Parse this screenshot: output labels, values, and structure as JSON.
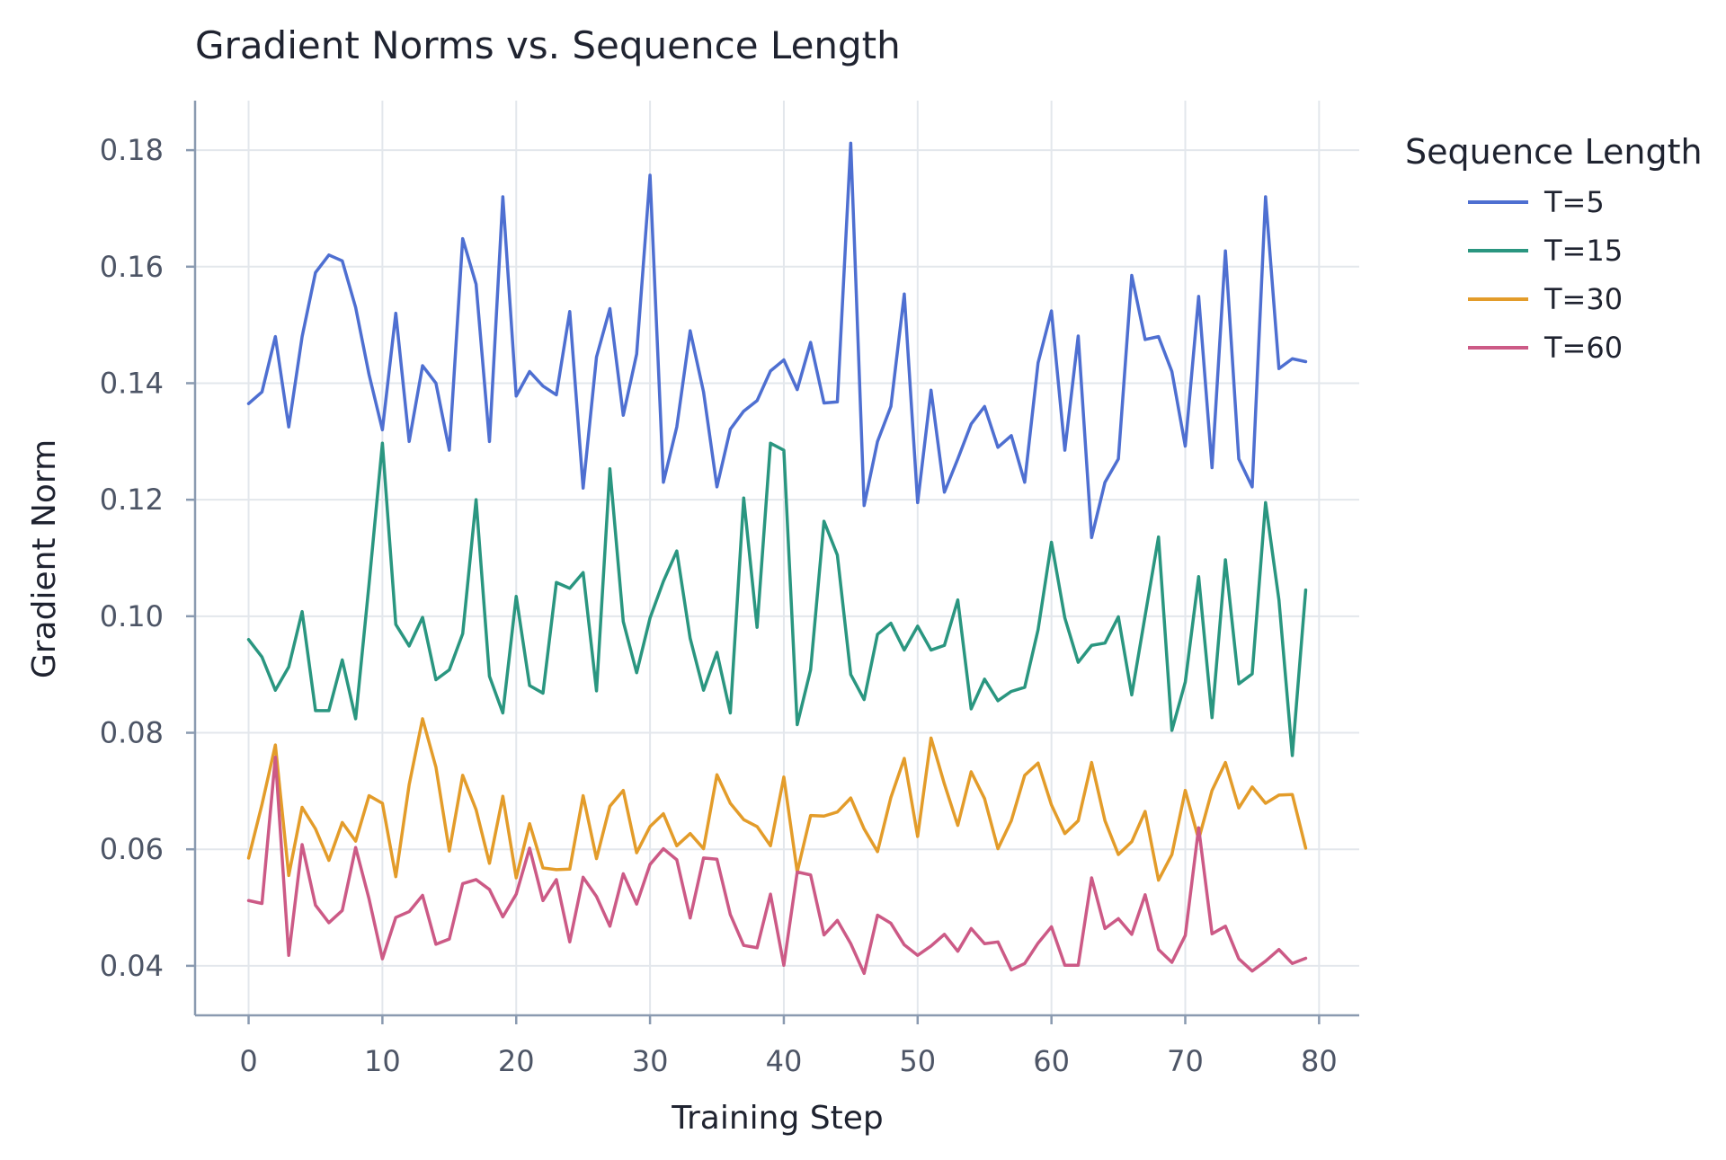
{
  "chart_data": {
    "type": "line",
    "title": "Gradient Norms vs. Sequence Length",
    "xlabel": "Training Step",
    "ylabel": "Gradient Norm",
    "xlim": [
      -4,
      83
    ],
    "ylim": [
      0.0315,
      0.1885
    ],
    "xticks": [
      0,
      10,
      20,
      30,
      40,
      50,
      60,
      70,
      80
    ],
    "yticks": [
      0.04,
      0.06,
      0.08,
      0.1,
      0.12,
      0.14,
      0.16,
      0.18
    ],
    "ytick_labels": [
      "0.04",
      "0.06",
      "0.08",
      "0.10",
      "0.12",
      "0.14",
      "0.16",
      "0.18"
    ],
    "grid": true,
    "legend": {
      "title": "Sequence Length",
      "placement": "outside-right-top"
    },
    "series": [
      {
        "name": "T=5",
        "color": "#4e6fd1",
        "values": [
          0.1365,
          0.1385,
          0.148,
          0.1325,
          0.148,
          0.159,
          0.162,
          0.161,
          0.153,
          0.1415,
          0.132,
          0.152,
          0.13,
          0.143,
          0.14,
          0.1285,
          0.1648,
          0.157,
          0.13,
          0.172,
          0.1378,
          0.142,
          0.1395,
          0.138,
          0.1523,
          0.122,
          0.1445,
          0.1528,
          0.1345,
          0.145,
          0.1757,
          0.123,
          0.1325,
          0.149,
          0.1385,
          0.1222,
          0.1321,
          0.1352,
          0.137,
          0.1421,
          0.144,
          0.1389,
          0.147,
          0.1366,
          0.1368,
          0.1812,
          0.119,
          0.13,
          0.136,
          0.1553,
          0.1195,
          0.1388,
          0.1213,
          0.127,
          0.133,
          0.136,
          0.129,
          0.131,
          0.123,
          0.1435,
          0.1524,
          0.1285,
          0.1481,
          0.1135,
          0.123,
          0.127,
          0.1585,
          0.1475,
          0.148,
          0.142,
          0.1292,
          0.1549,
          0.1255,
          0.1627,
          0.127,
          0.1222,
          0.172,
          0.1425,
          0.1442,
          0.1437
        ]
      },
      {
        "name": "T=15",
        "color": "#2a9680",
        "values": [
          0.096,
          0.093,
          0.0873,
          0.0913,
          0.1008,
          0.0838,
          0.0838,
          0.0925,
          0.0824,
          0.1055,
          0.1297,
          0.0986,
          0.0949,
          0.0998,
          0.0891,
          0.0908,
          0.097,
          0.12,
          0.0897,
          0.0834,
          0.1034,
          0.0881,
          0.0868,
          0.1058,
          0.1048,
          0.1075,
          0.0872,
          0.1253,
          0.0991,
          0.0903,
          0.0997,
          0.106,
          0.1112,
          0.0962,
          0.0873,
          0.0938,
          0.0834,
          0.1203,
          0.0981,
          0.1297,
          0.1285,
          0.0814,
          0.0908,
          0.1163,
          0.1105,
          0.09,
          0.0857,
          0.0969,
          0.0988,
          0.0942,
          0.0983,
          0.0942,
          0.095,
          0.1028,
          0.0841,
          0.0892,
          0.0855,
          0.0871,
          0.0878,
          0.0977,
          0.1127,
          0.0997,
          0.0921,
          0.095,
          0.0954,
          0.0999,
          0.0865,
          0.1001,
          0.1136,
          0.0804,
          0.0887,
          0.1068,
          0.0826,
          0.1097,
          0.0884,
          0.0901,
          0.1195,
          0.1028,
          0.0761,
          0.1045
        ]
      },
      {
        "name": "T=30",
        "color": "#e39c2a",
        "values": [
          0.0585,
          0.0677,
          0.0779,
          0.0555,
          0.0672,
          0.0635,
          0.0581,
          0.0646,
          0.0614,
          0.0692,
          0.0679,
          0.0553,
          0.0711,
          0.0824,
          0.0741,
          0.0597,
          0.0727,
          0.0668,
          0.0576,
          0.0691,
          0.0551,
          0.0644,
          0.0568,
          0.0565,
          0.0566,
          0.0692,
          0.0584,
          0.0674,
          0.0701,
          0.0594,
          0.0639,
          0.0661,
          0.0606,
          0.0627,
          0.0601,
          0.0728,
          0.0679,
          0.0651,
          0.0639,
          0.0606,
          0.0724,
          0.0561,
          0.0658,
          0.0657,
          0.0664,
          0.0688,
          0.0635,
          0.0596,
          0.0689,
          0.0756,
          0.0622,
          0.0791,
          0.0712,
          0.0641,
          0.0733,
          0.0687,
          0.0601,
          0.0649,
          0.0727,
          0.0748,
          0.0676,
          0.0627,
          0.0649,
          0.0749,
          0.0649,
          0.0591,
          0.0613,
          0.0665,
          0.0547,
          0.0591,
          0.0701,
          0.0617,
          0.0701,
          0.0749,
          0.0671,
          0.0707,
          0.0679,
          0.0693,
          0.0694,
          0.0602
        ]
      },
      {
        "name": "T=60",
        "color": "#cc5a86",
        "values": [
          0.0512,
          0.0507,
          0.0758,
          0.0418,
          0.0608,
          0.0504,
          0.0474,
          0.0495,
          0.0603,
          0.0515,
          0.0412,
          0.0483,
          0.0493,
          0.0521,
          0.0437,
          0.0446,
          0.0541,
          0.0548,
          0.0531,
          0.0484,
          0.0523,
          0.0602,
          0.0512,
          0.0548,
          0.0441,
          0.0552,
          0.0519,
          0.0468,
          0.0558,
          0.0506,
          0.0574,
          0.0601,
          0.0582,
          0.0482,
          0.0585,
          0.0583,
          0.0488,
          0.0435,
          0.0431,
          0.0523,
          0.0401,
          0.0561,
          0.0556,
          0.0453,
          0.0478,
          0.0438,
          0.0387,
          0.0487,
          0.0473,
          0.0436,
          0.0418,
          0.0434,
          0.0454,
          0.0425,
          0.0464,
          0.0438,
          0.0441,
          0.0393,
          0.0404,
          0.0439,
          0.0467,
          0.0401,
          0.0401,
          0.0551,
          0.0464,
          0.0481,
          0.0454,
          0.0522,
          0.0428,
          0.0406,
          0.0452,
          0.0637,
          0.0455,
          0.0468,
          0.0412,
          0.0391,
          0.0408,
          0.0428,
          0.0404,
          0.0413
        ]
      }
    ]
  }
}
